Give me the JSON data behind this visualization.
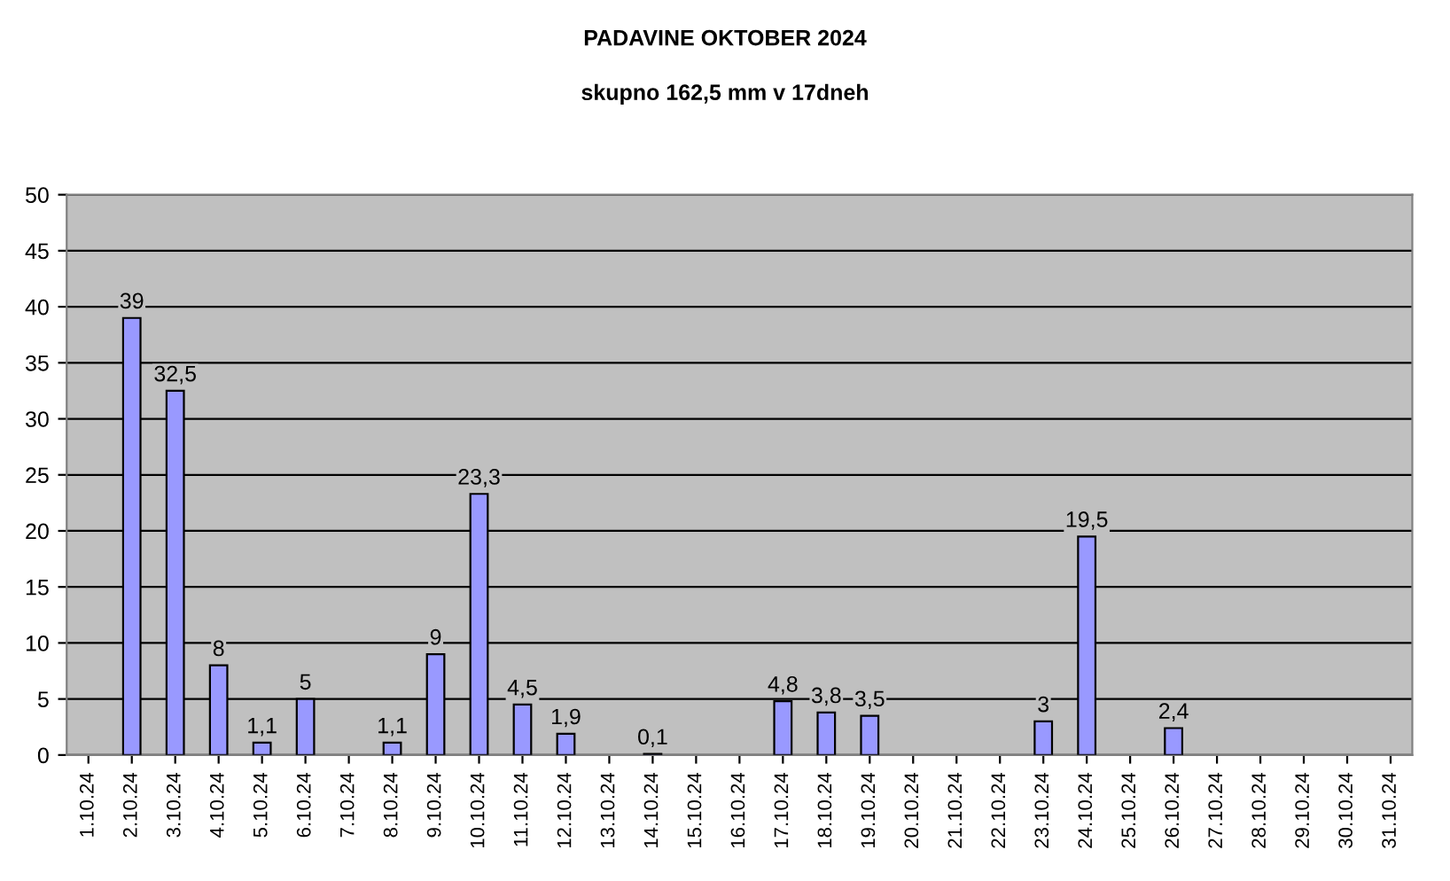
{
  "chart_data": {
    "type": "bar",
    "title": "PADAVINE OKTOBER 2024",
    "subtitle": "skupno 162,5 mm v 17dneh",
    "categories": [
      "1.10.24",
      "2.10.24",
      "3.10.24",
      "4.10.24",
      "5.10.24",
      "6.10.24",
      "7.10.24",
      "8.10.24",
      "9.10.24",
      "10.10.24",
      "11.10.24",
      "12.10.24",
      "13.10.24",
      "14.10.24",
      "15.10.24",
      "16.10.24",
      "17.10.24",
      "18.10.24",
      "19.10.24",
      "20.10.24",
      "21.10.24",
      "22.10.24",
      "23.10.24",
      "24.10.24",
      "25.10.24",
      "26.10.24",
      "27.10.24",
      "28.10.24",
      "29.10.24",
      "30.10.24",
      "31.10.24"
    ],
    "values": [
      null,
      39,
      32.5,
      8,
      1.1,
      5,
      null,
      1.1,
      9,
      23.3,
      4.5,
      1.9,
      null,
      0.1,
      null,
      null,
      4.8,
      3.8,
      3.5,
      null,
      null,
      null,
      3,
      19.5,
      null,
      2.4,
      null,
      null,
      null,
      null,
      null
    ],
    "value_labels": [
      null,
      "39",
      "32,5",
      "8",
      "1,1",
      "5",
      null,
      "1,1",
      "9",
      "23,3",
      "4,5",
      "1,9",
      null,
      "0,1",
      null,
      null,
      "4,8",
      "3,8",
      "3,5",
      null,
      null,
      null,
      "3",
      "19,5",
      null,
      "2,4",
      null,
      null,
      null,
      null,
      null
    ],
    "color": "#9999ff",
    "ylim": [
      0,
      50
    ],
    "yticks": [
      0,
      5,
      10,
      15,
      20,
      25,
      30,
      35,
      40,
      45,
      50
    ],
    "grid": "y",
    "legend": false
  }
}
